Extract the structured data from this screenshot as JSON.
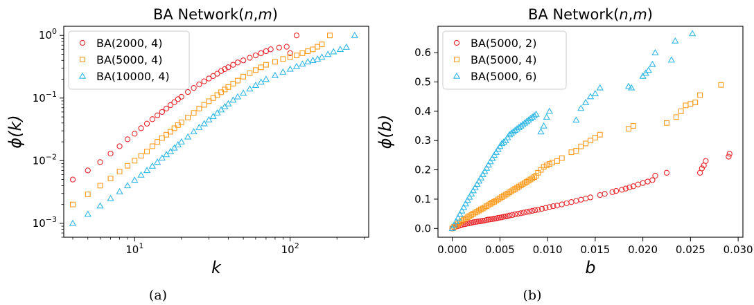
{
  "chart_data": [
    {
      "type": "scatter",
      "title": "BA Network(n,m)",
      "caption": "(a)",
      "xlabel": "k",
      "ylabel": "ϕ(k)",
      "xscale": "log",
      "yscale": "log",
      "xlim": [
        3.5,
        320
      ],
      "ylim": [
        0.0006,
        1.4
      ],
      "xticks": [
        {
          "value": 10,
          "label": "10^1"
        },
        {
          "value": 100,
          "label": "10^2"
        }
      ],
      "yticks": [
        {
          "value": 0.001,
          "label": "10^-3"
        },
        {
          "value": 0.01,
          "label": "10^-2"
        },
        {
          "value": 0.1,
          "label": "10^-1"
        },
        {
          "value": 1,
          "label": "10^0"
        }
      ],
      "grid": false,
      "legend": "upper-left",
      "series": [
        {
          "name": "BA(2000, 4)",
          "marker": "circle",
          "color": "#e8262a",
          "x": [
            4,
            5,
            6,
            7,
            8,
            9,
            10,
            11,
            12,
            13,
            14,
            15,
            16,
            17,
            18,
            19,
            20,
            22,
            24,
            26,
            28,
            30,
            32,
            34,
            36,
            38,
            40,
            43,
            46,
            50,
            55,
            60,
            65,
            70,
            75,
            85,
            95,
            100,
            110
          ],
          "y": [
            0.005,
            0.007,
            0.0095,
            0.013,
            0.017,
            0.022,
            0.027,
            0.033,
            0.039,
            0.046,
            0.053,
            0.06,
            0.068,
            0.077,
            0.086,
            0.096,
            0.105,
            0.125,
            0.145,
            0.165,
            0.185,
            0.205,
            0.225,
            0.245,
            0.27,
            0.29,
            0.31,
            0.34,
            0.37,
            0.4,
            0.44,
            0.48,
            0.52,
            0.56,
            0.6,
            0.64,
            0.66,
            0.52,
            1.0
          ]
        },
        {
          "name": "BA(5000, 4)",
          "marker": "square",
          "color": "#ff9a1a",
          "x": [
            4,
            5,
            6,
            7,
            8,
            9,
            10,
            11,
            12,
            13,
            14,
            15,
            16,
            17,
            18,
            19,
            20,
            22,
            24,
            26,
            28,
            30,
            32,
            34,
            36,
            38,
            40,
            43,
            46,
            50,
            55,
            60,
            65,
            70,
            80,
            90,
            100,
            110,
            120,
            130,
            140,
            150,
            160,
            180
          ],
          "y": [
            0.002,
            0.0029,
            0.004,
            0.0052,
            0.0067,
            0.0083,
            0.01,
            0.012,
            0.014,
            0.017,
            0.02,
            0.023,
            0.026,
            0.029,
            0.033,
            0.037,
            0.041,
            0.049,
            0.058,
            0.068,
            0.078,
            0.089,
            0.1,
            0.112,
            0.124,
            0.137,
            0.15,
            0.17,
            0.19,
            0.22,
            0.25,
            0.28,
            0.31,
            0.34,
            0.38,
            0.42,
            0.45,
            0.48,
            0.52,
            0.56,
            0.6,
            0.66,
            0.72,
            1.0
          ]
        },
        {
          "name": "BA(10000, 4)",
          "marker": "triangle",
          "color": "#2fb7e6",
          "x": [
            4,
            5,
            6,
            7,
            8,
            9,
            10,
            11,
            12,
            13,
            14,
            15,
            16,
            17,
            18,
            19,
            20,
            22,
            24,
            26,
            28,
            30,
            32,
            34,
            36,
            38,
            40,
            43,
            46,
            50,
            55,
            60,
            65,
            70,
            80,
            90,
            100,
            110,
            120,
            130,
            140,
            150,
            160,
            175,
            190,
            210,
            230,
            260
          ],
          "y": [
            0.001,
            0.0014,
            0.0019,
            0.0025,
            0.0032,
            0.004,
            0.0049,
            0.0059,
            0.007,
            0.0082,
            0.0095,
            0.011,
            0.0125,
            0.014,
            0.016,
            0.018,
            0.02,
            0.024,
            0.029,
            0.034,
            0.039,
            0.045,
            0.051,
            0.058,
            0.065,
            0.073,
            0.081,
            0.093,
            0.105,
            0.12,
            0.14,
            0.16,
            0.18,
            0.2,
            0.23,
            0.26,
            0.29,
            0.32,
            0.35,
            0.38,
            0.4,
            0.42,
            0.45,
            0.5,
            0.55,
            0.6,
            0.65,
            1.0
          ]
        }
      ]
    },
    {
      "type": "scatter",
      "title": "BA Network(n,m)",
      "caption": "(b)",
      "xlabel": "b",
      "ylabel": "ϕ(b)",
      "xscale": "linear",
      "yscale": "linear",
      "xlim": [
        -0.0015,
        0.0305
      ],
      "ylim": [
        -0.03,
        0.69
      ],
      "xticks": [
        {
          "value": 0.0,
          "label": "0.000"
        },
        {
          "value": 0.005,
          "label": "0.005"
        },
        {
          "value": 0.01,
          "label": "0.010"
        },
        {
          "value": 0.015,
          "label": "0.015"
        },
        {
          "value": 0.02,
          "label": "0.020"
        },
        {
          "value": 0.025,
          "label": "0.025"
        },
        {
          "value": 0.03,
          "label": "0.030"
        }
      ],
      "yticks": [
        {
          "value": 0.0,
          "label": "0.0"
        },
        {
          "value": 0.1,
          "label": "0.1"
        },
        {
          "value": 0.2,
          "label": "0.2"
        },
        {
          "value": 0.3,
          "label": "0.3"
        },
        {
          "value": 0.4,
          "label": "0.4"
        },
        {
          "value": 0.5,
          "label": "0.5"
        },
        {
          "value": 0.6,
          "label": "0.6"
        }
      ],
      "grid": false,
      "legend": "upper-left",
      "series": [
        {
          "name": "BA(5000, 2)",
          "marker": "circle",
          "color": "#e8262a",
          "x": [
            0.0,
            0.0002,
            0.0004,
            0.0006,
            0.0008,
            0.001,
            0.0012,
            0.0014,
            0.0016,
            0.0018,
            0.002,
            0.0022,
            0.0024,
            0.0026,
            0.0028,
            0.003,
            0.0032,
            0.0034,
            0.0036,
            0.0038,
            0.004,
            0.0042,
            0.0044,
            0.0046,
            0.0048,
            0.005,
            0.0052,
            0.0054,
            0.0056,
            0.0058,
            0.006,
            0.0063,
            0.0066,
            0.0069,
            0.0072,
            0.0075,
            0.0078,
            0.0081,
            0.0084,
            0.0087,
            0.009,
            0.0094,
            0.0098,
            0.0102,
            0.0106,
            0.011,
            0.0115,
            0.012,
            0.0125,
            0.013,
            0.0135,
            0.014,
            0.0145,
            0.0155,
            0.016,
            0.0168,
            0.0172,
            0.0178,
            0.0182,
            0.0186,
            0.019,
            0.0195,
            0.02,
            0.0205,
            0.021,
            0.0213,
            0.0225,
            0.026,
            0.0262,
            0.0264,
            0.0266,
            0.029,
            0.0291
          ],
          "y": [
            0.0,
            0.003,
            0.006,
            0.008,
            0.01,
            0.012,
            0.014,
            0.015,
            0.017,
            0.018,
            0.019,
            0.021,
            0.022,
            0.023,
            0.024,
            0.025,
            0.026,
            0.027,
            0.029,
            0.03,
            0.031,
            0.032,
            0.033,
            0.034,
            0.036,
            0.037,
            0.038,
            0.04,
            0.041,
            0.042,
            0.044,
            0.046,
            0.048,
            0.05,
            0.052,
            0.054,
            0.056,
            0.058,
            0.06,
            0.062,
            0.064,
            0.067,
            0.07,
            0.073,
            0.076,
            0.078,
            0.082,
            0.086,
            0.09,
            0.094,
            0.098,
            0.102,
            0.106,
            0.114,
            0.118,
            0.124,
            0.128,
            0.132,
            0.136,
            0.14,
            0.144,
            0.15,
            0.155,
            0.16,
            0.165,
            0.18,
            0.19,
            0.19,
            0.205,
            0.215,
            0.23,
            0.245,
            0.255
          ]
        },
        {
          "name": "BA(5000, 4)",
          "marker": "square",
          "color": "#ff9a1a",
          "x": [
            0.0,
            0.0002,
            0.0004,
            0.0006,
            0.0008,
            0.001,
            0.0012,
            0.0014,
            0.0016,
            0.0018,
            0.002,
            0.0022,
            0.0024,
            0.0026,
            0.0028,
            0.003,
            0.0032,
            0.0034,
            0.0036,
            0.0038,
            0.004,
            0.0042,
            0.0044,
            0.0046,
            0.0048,
            0.005,
            0.0052,
            0.0054,
            0.0056,
            0.0058,
            0.006,
            0.0062,
            0.0064,
            0.0066,
            0.0068,
            0.007,
            0.0072,
            0.0074,
            0.0076,
            0.0078,
            0.008,
            0.0082,
            0.0084,
            0.0086,
            0.0088,
            0.009,
            0.0093,
            0.0096,
            0.0099,
            0.0102,
            0.0105,
            0.011,
            0.0115,
            0.0125,
            0.013,
            0.0135,
            0.014,
            0.0145,
            0.015,
            0.0155,
            0.0185,
            0.019,
            0.0225,
            0.0235,
            0.024,
            0.0245,
            0.025,
            0.0255,
            0.026,
            0.0282
          ],
          "y": [
            0.0,
            0.006,
            0.011,
            0.016,
            0.021,
            0.026,
            0.03,
            0.034,
            0.038,
            0.042,
            0.046,
            0.05,
            0.054,
            0.057,
            0.061,
            0.065,
            0.068,
            0.072,
            0.076,
            0.08,
            0.084,
            0.088,
            0.091,
            0.095,
            0.099,
            0.103,
            0.107,
            0.111,
            0.115,
            0.119,
            0.123,
            0.127,
            0.131,
            0.135,
            0.139,
            0.143,
            0.147,
            0.151,
            0.155,
            0.159,
            0.163,
            0.167,
            0.171,
            0.175,
            0.18,
            0.19,
            0.2,
            0.21,
            0.215,
            0.22,
            0.225,
            0.23,
            0.24,
            0.26,
            0.265,
            0.28,
            0.29,
            0.3,
            0.31,
            0.32,
            0.34,
            0.35,
            0.36,
            0.38,
            0.4,
            0.42,
            0.425,
            0.43,
            0.455,
            0.49
          ]
        },
        {
          "name": "BA(5000, 6)",
          "marker": "triangle",
          "color": "#2fb7e6",
          "x": [
            0.0,
            0.0002,
            0.0004,
            0.0006,
            0.0008,
            0.001,
            0.0012,
            0.0014,
            0.0016,
            0.0018,
            0.002,
            0.0022,
            0.0024,
            0.0026,
            0.0028,
            0.003,
            0.0032,
            0.0034,
            0.0036,
            0.0038,
            0.004,
            0.0042,
            0.0044,
            0.0046,
            0.0048,
            0.005,
            0.0052,
            0.0054,
            0.0056,
            0.0058,
            0.006,
            0.0062,
            0.0064,
            0.0066,
            0.0068,
            0.007,
            0.0072,
            0.0074,
            0.0076,
            0.0078,
            0.008,
            0.0082,
            0.0084,
            0.0086,
            0.0088,
            0.0093,
            0.0096,
            0.0099,
            0.0102,
            0.013,
            0.0135,
            0.014,
            0.0145,
            0.015,
            0.0155,
            0.0185,
            0.0188,
            0.02,
            0.0203,
            0.0206,
            0.021,
            0.0213,
            0.023,
            0.0234,
            0.0252
          ],
          "y": [
            0.0,
            0.012,
            0.024,
            0.036,
            0.048,
            0.06,
            0.072,
            0.084,
            0.096,
            0.107,
            0.118,
            0.129,
            0.14,
            0.151,
            0.162,
            0.173,
            0.184,
            0.195,
            0.206,
            0.217,
            0.228,
            0.239,
            0.25,
            0.26,
            0.27,
            0.28,
            0.29,
            0.295,
            0.3,
            0.31,
            0.32,
            0.325,
            0.33,
            0.335,
            0.34,
            0.345,
            0.35,
            0.355,
            0.36,
            0.365,
            0.37,
            0.375,
            0.38,
            0.385,
            0.39,
            0.33,
            0.35,
            0.38,
            0.4,
            0.37,
            0.41,
            0.43,
            0.45,
            0.46,
            0.48,
            0.485,
            0.48,
            0.52,
            0.53,
            0.54,
            0.56,
            0.6,
            0.575,
            0.64,
            0.665
          ]
        }
      ]
    }
  ]
}
